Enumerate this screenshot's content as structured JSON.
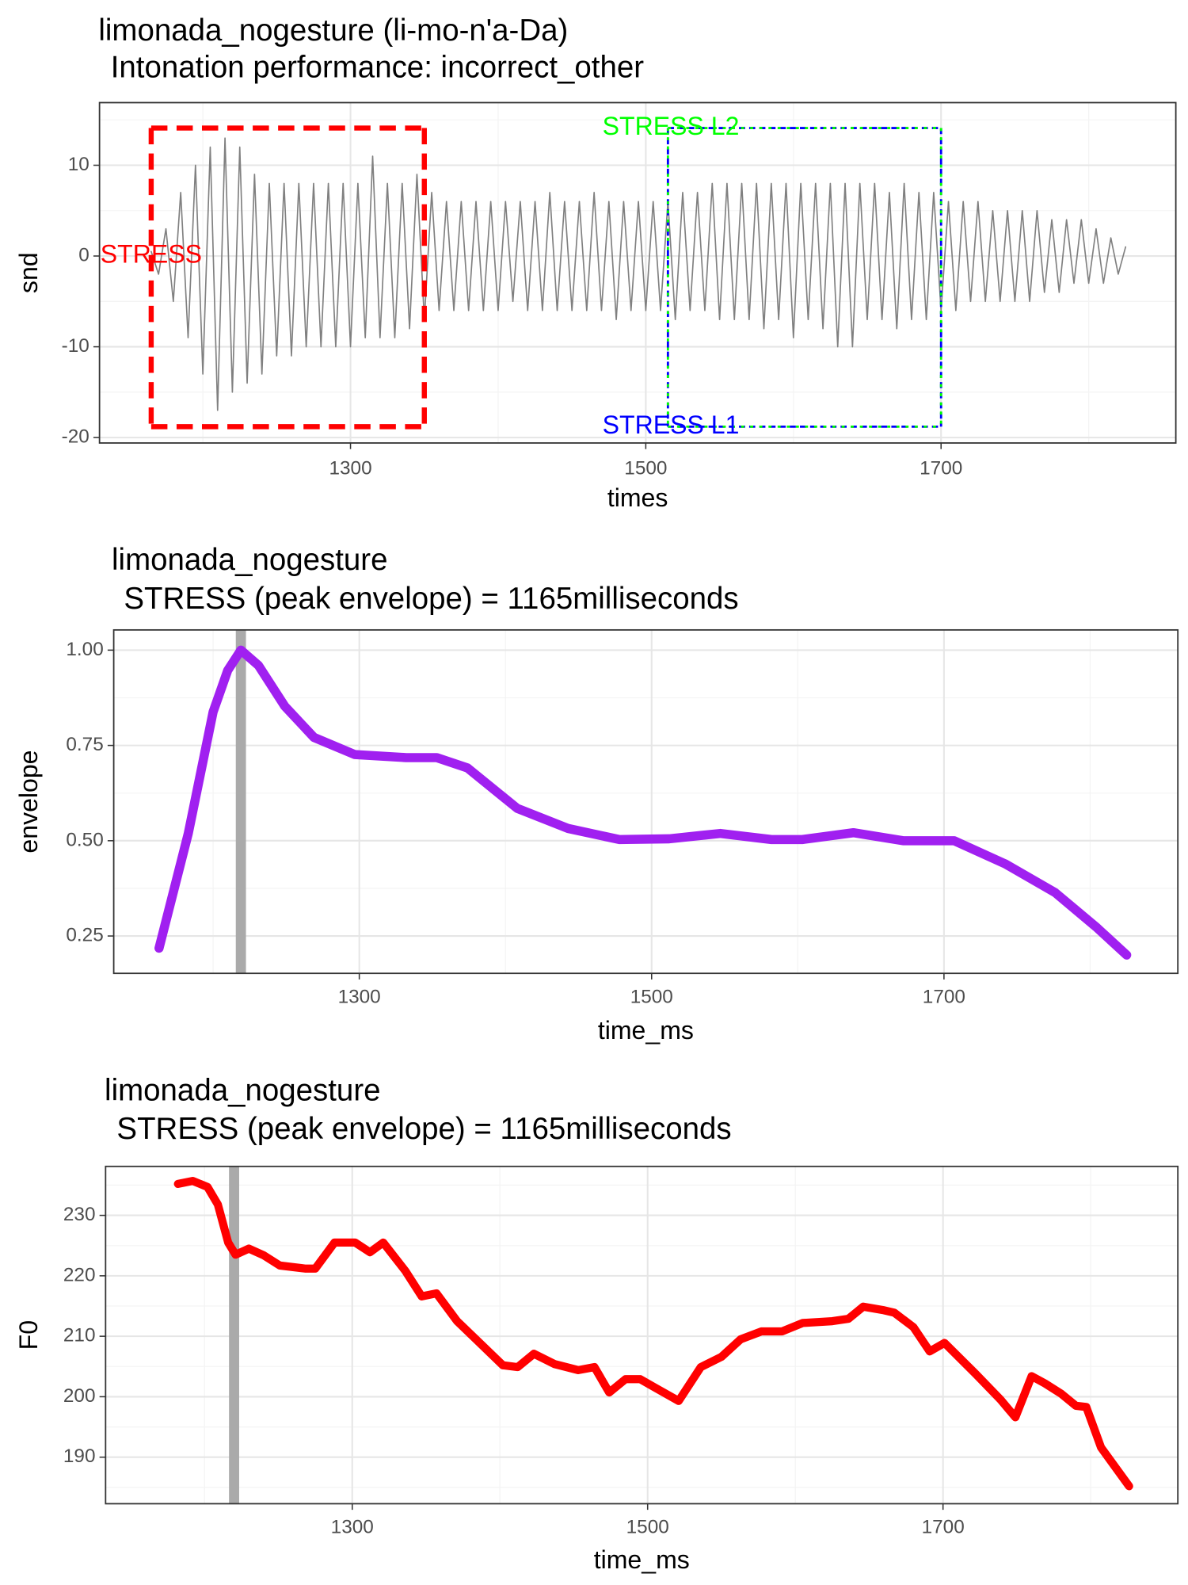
{
  "chart_data": [
    {
      "type": "line",
      "title": "limonada_nogesture  (li-mo-n'a-Da)",
      "subtitle": "Intonation performance: incorrect_other",
      "xlabel": "times",
      "ylabel": "snd",
      "color": "gray",
      "xlim": [
        1130,
        1859
      ],
      "ylim": [
        -20.6,
        16.9
      ],
      "xticks": [
        1300,
        1500,
        1700
      ],
      "yticks": [
        -20,
        -10,
        0,
        10
      ],
      "minor_xticks": [
        1200,
        1400,
        1600,
        1800
      ],
      "minor_yticks": [
        -15,
        -5,
        5,
        15
      ],
      "grid": true,
      "x": [
        1165,
        1170,
        1175,
        1180,
        1185,
        1190,
        1195,
        1200,
        1205,
        1210,
        1215,
        1220,
        1225,
        1230,
        1235,
        1240,
        1245,
        1250,
        1255,
        1260,
        1265,
        1270,
        1275,
        1280,
        1285,
        1290,
        1295,
        1300,
        1305,
        1310,
        1315,
        1320,
        1325,
        1330,
        1335,
        1340,
        1345,
        1350,
        1355,
        1360,
        1365,
        1370,
        1375,
        1380,
        1385,
        1390,
        1395,
        1400,
        1405,
        1410,
        1415,
        1420,
        1425,
        1430,
        1435,
        1440,
        1445,
        1450,
        1455,
        1460,
        1465,
        1470,
        1475,
        1480,
        1485,
        1490,
        1495,
        1500,
        1505,
        1510,
        1515,
        1520,
        1525,
        1530,
        1535,
        1540,
        1545,
        1550,
        1555,
        1560,
        1565,
        1570,
        1575,
        1580,
        1585,
        1590,
        1595,
        1600,
        1605,
        1610,
        1615,
        1620,
        1625,
        1630,
        1635,
        1640,
        1645,
        1650,
        1655,
        1660,
        1665,
        1670,
        1675,
        1680,
        1685,
        1690,
        1695,
        1700,
        1705,
        1710,
        1715,
        1720,
        1725,
        1730,
        1735,
        1740,
        1745,
        1750,
        1755,
        1760,
        1765,
        1770,
        1775,
        1780,
        1785,
        1790,
        1795,
        1800,
        1805,
        1810,
        1815,
        1820,
        1825
      ],
      "values": [
        0.5,
        -2,
        3,
        -5,
        7,
        -9,
        10,
        -13,
        12,
        -17,
        13,
        -15,
        12,
        -14,
        9,
        -13,
        8,
        -11,
        8,
        -11,
        8,
        -10,
        8,
        -10,
        8,
        -10,
        8,
        -10,
        8,
        -9,
        11,
        -9,
        8,
        -9,
        8,
        -8,
        9,
        -7,
        7,
        -6,
        6,
        -6,
        6,
        -6,
        6,
        -6,
        6,
        -6,
        6,
        -5,
        6,
        -6,
        6,
        -6,
        7,
        -6,
        6,
        -6,
        6,
        -6,
        7,
        -6,
        6,
        -7,
        6,
        -6,
        6,
        -6,
        6,
        -6,
        6,
        -7,
        7,
        -6,
        7,
        -6,
        8,
        -7,
        8,
        -7,
        8,
        -7,
        8,
        -8,
        8,
        -7,
        8,
        -9,
        8,
        -7,
        8,
        -8,
        8,
        -10,
        8,
        -10,
        8,
        -7,
        8,
        -7,
        7,
        -8,
        8,
        -7,
        7,
        -7,
        7,
        -6,
        6,
        -6,
        6,
        -5,
        6,
        -5,
        5,
        -5,
        5,
        -5,
        5,
        -5,
        5,
        -4,
        4,
        -4,
        4,
        -3,
        4,
        -3,
        3,
        -3,
        2,
        -2,
        1
      ],
      "rects": [
        {
          "xmin": 1165,
          "xmax": 1350,
          "ymin": -18.8,
          "ymax": 14.1,
          "color": "red",
          "dash": "long"
        },
        {
          "xmin": 1515,
          "xmax": 1700,
          "ymin": -18.8,
          "ymax": 14.1,
          "color": "blue",
          "dash": "short"
        },
        {
          "xmin": 1515,
          "xmax": 1700,
          "ymin": -18.8,
          "ymax": 14.1,
          "color": "lime",
          "dash": "dotted"
        }
      ],
      "texts": [
        {
          "text": "STRESS",
          "x": 1165,
          "y": 0,
          "color": "red"
        },
        {
          "text": "STRESS L2",
          "x": 1517,
          "y": 14.1,
          "color": "lime"
        },
        {
          "text": "STRESS L1",
          "x": 1517,
          "y": -18.8,
          "color": "blue"
        }
      ]
    },
    {
      "type": "line",
      "title": "limonada_nogesture",
      "subtitle": "STRESS (peak envelope) = 1165milliseconds",
      "xlabel": "time_ms",
      "ylabel": "envelope",
      "color": "#a020f0",
      "xlim": [
        1132,
        1860
      ],
      "ylim": [
        0.152,
        1.053
      ],
      "xticks": [
        1300,
        1500,
        1700
      ],
      "yticks": [
        0.25,
        {
          "value": 0.5,
          "label": "0.50"
        },
        0.75,
        {
          "value": 1,
          "label": "1.00"
        }
      ],
      "minor_xticks": [
        1200,
        1400,
        1600,
        1800
      ],
      "minor_yticks": [
        0.375,
        0.625,
        0.875
      ],
      "grid": true,
      "vline": {
        "x": 1219,
        "color": "#aaaaaa"
      },
      "x": [
        1163,
        1183,
        1200,
        1210,
        1219,
        1231,
        1249,
        1269,
        1297,
        1332,
        1353,
        1374,
        1408,
        1443,
        1478,
        1512,
        1547,
        1582,
        1603,
        1638,
        1672,
        1707,
        1742,
        1776,
        1804,
        1825
      ],
      "values": [
        0.218,
        0.519,
        0.838,
        0.947,
        1.0,
        0.96,
        0.853,
        0.771,
        0.726,
        0.718,
        0.718,
        0.691,
        0.585,
        0.532,
        0.503,
        0.505,
        0.519,
        0.503,
        0.503,
        0.521,
        0.5,
        0.5,
        0.439,
        0.364,
        0.274,
        0.2
      ]
    },
    {
      "type": "line",
      "title": "limonada_nogesture",
      "subtitle": "STRESS (peak envelope) = 1165milliseconds",
      "xlabel": "time_ms",
      "ylabel": "F0",
      "color": "red",
      "xlim": [
        1133,
        1859
      ],
      "ylim": [
        182.3,
        238.1
      ],
      "xticks": [
        1300,
        1500,
        1700
      ],
      "yticks": [
        190,
        200,
        210,
        220,
        230
      ],
      "minor_xticks": [
        1200,
        1400,
        1600,
        1800
      ],
      "minor_yticks": [
        185,
        195,
        205,
        215,
        225,
        235
      ],
      "grid": true,
      "vline": {
        "x": 1220,
        "color": "#aaaaaa"
      },
      "x": [
        1182,
        1192,
        1202,
        1209,
        1216,
        1221,
        1230,
        1240,
        1251,
        1268,
        1275,
        1288,
        1302,
        1312,
        1321,
        1336,
        1347,
        1357,
        1371,
        1385,
        1402,
        1412,
        1423,
        1437,
        1453,
        1464,
        1474,
        1485,
        1495,
        1505,
        1521,
        1536,
        1550,
        1563,
        1577,
        1591,
        1605,
        1625,
        1636,
        1646,
        1660,
        1667,
        1680,
        1691,
        1701,
        1722,
        1739,
        1749,
        1760,
        1769,
        1780,
        1790,
        1797,
        1807,
        1826
      ],
      "values": [
        235.2,
        235.7,
        234.7,
        231.8,
        225.5,
        223.5,
        224.5,
        223.4,
        221.7,
        221.2,
        221.2,
        225.5,
        225.5,
        223.9,
        225.5,
        220.8,
        216.6,
        217.1,
        212.5,
        209.2,
        205.2,
        204.9,
        207.1,
        205.4,
        204.4,
        204.9,
        200.7,
        202.9,
        202.9,
        201.5,
        199.3,
        204.9,
        206.6,
        209.5,
        210.8,
        210.8,
        212.2,
        212.5,
        212.9,
        214.9,
        214.3,
        213.9,
        211.5,
        207.5,
        208.9,
        203.8,
        199.5,
        196.6,
        203.4,
        202.2,
        200.5,
        198.5,
        198.3,
        191.6,
        185.2
      ]
    }
  ]
}
